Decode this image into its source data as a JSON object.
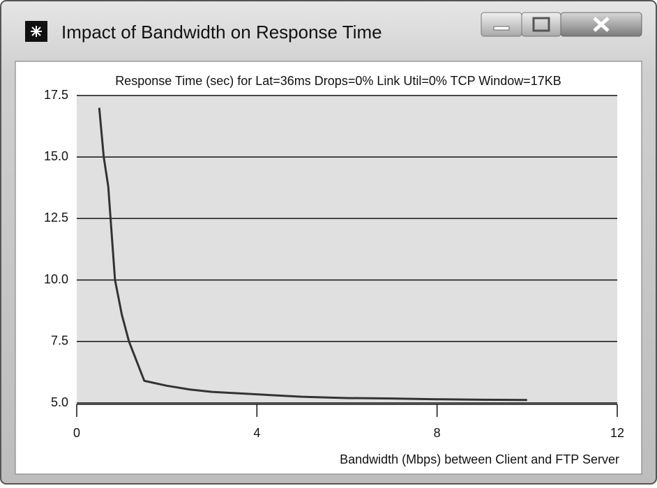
{
  "window": {
    "title": "Impact of Bandwidth on Response Time"
  },
  "chart_data": {
    "type": "line",
    "title": "Response Time (sec) for Lat=36ms Drops=0% Link Util=0% TCP Window=17KB",
    "x_label": "Bandwidth (Mbps) between Client and FTP Server",
    "x": [
      0.5,
      0.6,
      0.7,
      0.85,
      1.0,
      1.16,
      1.5,
      2,
      2.5,
      3,
      4,
      5,
      6,
      7,
      8,
      9,
      10
    ],
    "series": [
      {
        "color": "#333333",
        "values": [
          17.0,
          15.0,
          13.8,
          10.0,
          8.6,
          7.5,
          5.9,
          5.7,
          5.55,
          5.45,
          5.35,
          5.25,
          5.2,
          5.18,
          5.15,
          5.13,
          5.12
        ]
      }
    ],
    "xlim": [
      0,
      12
    ],
    "xticks": [
      0,
      4,
      8,
      12
    ],
    "ylim": [
      5,
      17.5
    ],
    "yticks": [
      17.5,
      {
        "value": 15,
        "label": "15.0"
      },
      {
        "value": 12.5,
        "label": "12.5"
      },
      {
        "value": 10,
        "label": "10.0"
      },
      7.5,
      {
        "value": 5,
        "label": "5.0"
      }
    ],
    "grid": true
  }
}
